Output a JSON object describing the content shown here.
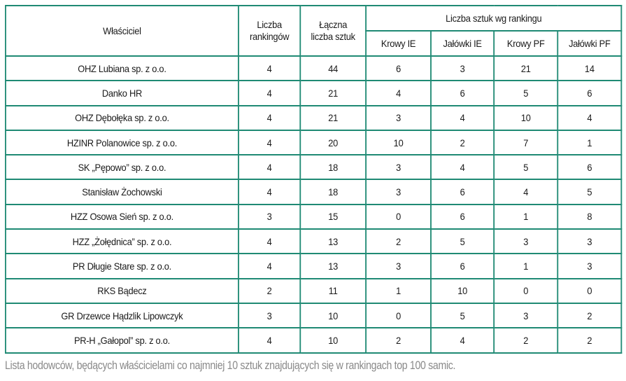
{
  "table": {
    "headers": {
      "owner": "Właściciel",
      "rankings_l1": "Liczba",
      "rankings_l2": "rankingów",
      "total_l1": "Łączna",
      "total_l2": "liczba sztuk",
      "group": "Liczba sztuk wg rankingu",
      "sub": [
        "Krowy IE",
        "Jałówki IE",
        "Krowy PF",
        "Jałówki PF"
      ]
    },
    "rows": [
      {
        "owner": "OHZ Lubiana sp. z o.o.",
        "rankings": "4",
        "total": "44",
        "krowy_ie": "6",
        "jalowki_ie": "3",
        "krowy_pf": "21",
        "jalowki_pf": "14"
      },
      {
        "owner": "Danko HR",
        "rankings": "4",
        "total": "21",
        "krowy_ie": "4",
        "jalowki_ie": "6",
        "krowy_pf": "5",
        "jalowki_pf": "6"
      },
      {
        "owner": "OHZ Dębołęka sp. z o.o.",
        "rankings": "4",
        "total": "21",
        "krowy_ie": "3",
        "jalowki_ie": "4",
        "krowy_pf": "10",
        "jalowki_pf": "4"
      },
      {
        "owner": "HZINR Polanowice sp. z o.o.",
        "rankings": "4",
        "total": "20",
        "krowy_ie": "10",
        "jalowki_ie": "2",
        "krowy_pf": "7",
        "jalowki_pf": "1"
      },
      {
        "owner": "SK „Pępowo” sp. z o.o.",
        "rankings": "4",
        "total": "18",
        "krowy_ie": "3",
        "jalowki_ie": "4",
        "krowy_pf": "5",
        "jalowki_pf": "6"
      },
      {
        "owner": "Stanisław Żochowski",
        "rankings": "4",
        "total": "18",
        "krowy_ie": "3",
        "jalowki_ie": "6",
        "krowy_pf": "4",
        "jalowki_pf": "5"
      },
      {
        "owner": "HZZ Osowa Sień sp. z o.o.",
        "rankings": "3",
        "total": "15",
        "krowy_ie": "0",
        "jalowki_ie": "6",
        "krowy_pf": "1",
        "jalowki_pf": "8"
      },
      {
        "owner": "HZZ „Żołędnica” sp. z o.o.",
        "rankings": "4",
        "total": "13",
        "krowy_ie": "2",
        "jalowki_ie": "5",
        "krowy_pf": "3",
        "jalowki_pf": "3"
      },
      {
        "owner": "PR Długie Stare sp. z o.o.",
        "rankings": "4",
        "total": "13",
        "krowy_ie": "3",
        "jalowki_ie": "6",
        "krowy_pf": "1",
        "jalowki_pf": "3"
      },
      {
        "owner": "RKS Bądecz",
        "rankings": "2",
        "total": "11",
        "krowy_ie": "1",
        "jalowki_ie": "10",
        "krowy_pf": "0",
        "jalowki_pf": "0"
      },
      {
        "owner": "GR Drzewce Hądzlik Lipowczyk",
        "rankings": "3",
        "total": "10",
        "krowy_ie": "0",
        "jalowki_ie": "5",
        "krowy_pf": "3",
        "jalowki_pf": "2"
      },
      {
        "owner": "PR-H „Gałopol” sp. z o.o.",
        "rankings": "4",
        "total": "10",
        "krowy_ie": "2",
        "jalowki_ie": "4",
        "krowy_pf": "2",
        "jalowki_pf": "2"
      }
    ]
  },
  "caption": "Lista hodowców, będących właścicielami co najmniej 10 sztuk znajdujących się w rankingach top 100 samic.",
  "colors": {
    "border": "#1f8a74",
    "caption": "#8a8a8a"
  }
}
